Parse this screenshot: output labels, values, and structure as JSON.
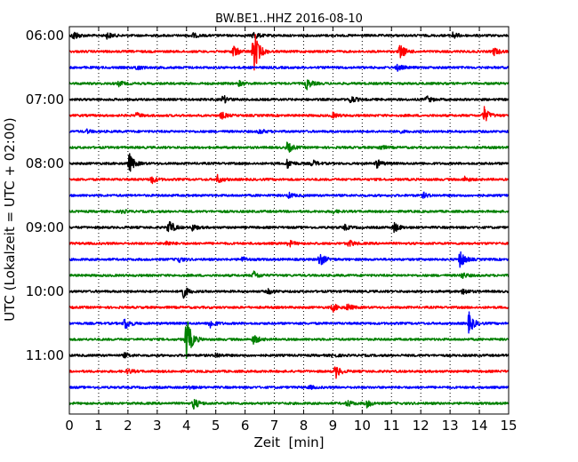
{
  "chart_data": {
    "type": "line",
    "title": "BW.BE1..HHZ 2016-08-10",
    "xlabel": "Zeit  [min]",
    "ylabel": "UTC (Lokalzeit = UTC + 02:00)",
    "xlim": [
      0,
      15
    ],
    "x_ticks": [
      "0",
      "1",
      "2",
      "3",
      "4",
      "5",
      "6",
      "7",
      "8",
      "9",
      "10",
      "11",
      "12",
      "13",
      "14",
      "15"
    ],
    "y_ticks": [
      {
        "label": "06:00",
        "trace": 0
      },
      {
        "label": "07:00",
        "trace": 4
      },
      {
        "label": "08:00",
        "trace": 8
      },
      {
        "label": "09:00",
        "trace": 12
      },
      {
        "label": "10:00",
        "trace": 16
      },
      {
        "label": "11:00",
        "trace": 20
      }
    ],
    "colors": [
      "#000000",
      "#ff0000",
      "#0000ff",
      "#008000"
    ],
    "grid": {
      "x": true,
      "y": false,
      "style": "dotted"
    },
    "traces": [
      {
        "events": [
          [
            0.15,
            0.6
          ],
          [
            1.3,
            0.4
          ],
          [
            4.2,
            0.3
          ],
          [
            6.3,
            0.5
          ],
          [
            13.1,
            0.4
          ]
        ]
      },
      {
        "events": [
          [
            5.6,
            0.8
          ],
          [
            6.3,
            3.0
          ],
          [
            11.3,
            1.0
          ],
          [
            14.5,
            0.5
          ]
        ]
      },
      {
        "events": [
          [
            2.3,
            0.3
          ],
          [
            11.2,
            0.4
          ]
        ]
      },
      {
        "events": [
          [
            1.7,
            0.3
          ],
          [
            5.8,
            0.3
          ],
          [
            8.1,
            0.7
          ]
        ]
      },
      {
        "events": [
          [
            5.25,
            0.5
          ],
          [
            9.6,
            0.5
          ],
          [
            12.2,
            0.4
          ]
        ]
      },
      {
        "events": [
          [
            2.3,
            0.3
          ],
          [
            5.2,
            0.4
          ],
          [
            9.0,
            0.3
          ],
          [
            14.15,
            1.1
          ]
        ]
      },
      {
        "events": [
          [
            0.6,
            0.2
          ],
          [
            6.5,
            0.3
          ],
          [
            11.2,
            0.2
          ]
        ]
      },
      {
        "events": [
          [
            7.45,
            0.7
          ],
          [
            10.6,
            0.3
          ]
        ]
      },
      {
        "events": [
          [
            2.05,
            1.2
          ],
          [
            7.45,
            0.6
          ],
          [
            8.3,
            0.4
          ],
          [
            10.5,
            0.5
          ]
        ]
      },
      {
        "events": [
          [
            2.8,
            0.5
          ],
          [
            5.05,
            0.5
          ],
          [
            13.5,
            0.3
          ]
        ]
      },
      {
        "events": [
          [
            7.5,
            0.3
          ],
          [
            12.1,
            0.3
          ]
        ]
      },
      {
        "events": [
          [
            1.8,
            0.2
          ],
          [
            9.0,
            0.2
          ]
        ]
      },
      {
        "events": [
          [
            3.4,
            1.0
          ],
          [
            4.2,
            0.4
          ],
          [
            9.4,
            0.3
          ],
          [
            11.1,
            0.6
          ]
        ]
      },
      {
        "events": [
          [
            3.3,
            0.3
          ],
          [
            7.5,
            0.4
          ],
          [
            9.55,
            0.4
          ]
        ]
      },
      {
        "events": [
          [
            3.7,
            0.4
          ],
          [
            5.9,
            0.3
          ],
          [
            8.55,
            0.9
          ],
          [
            13.35,
            1.1
          ]
        ]
      },
      {
        "events": [
          [
            6.3,
            0.5
          ],
          [
            13.4,
            0.4
          ]
        ]
      },
      {
        "events": [
          [
            3.85,
            1.0
          ],
          [
            6.8,
            0.3
          ],
          [
            13.45,
            0.4
          ]
        ]
      },
      {
        "events": [
          [
            9.0,
            0.5
          ],
          [
            9.5,
            0.4
          ]
        ]
      },
      {
        "events": [
          [
            1.9,
            0.8
          ],
          [
            4.8,
            0.6
          ],
          [
            13.65,
            1.3
          ]
        ]
      },
      {
        "events": [
          [
            4.0,
            3.0
          ],
          [
            6.3,
            0.6
          ]
        ]
      },
      {
        "events": [
          [
            1.9,
            0.3
          ],
          [
            5.0,
            0.3
          ],
          [
            9.0,
            0.2
          ]
        ]
      },
      {
        "events": [
          [
            2.0,
            0.3
          ],
          [
            9.1,
            0.8
          ]
        ]
      },
      {
        "events": [
          [
            4.1,
            0.2
          ],
          [
            8.2,
            0.2
          ]
        ]
      },
      {
        "events": [
          [
            4.25,
            0.7
          ],
          [
            9.5,
            0.4
          ],
          [
            10.15,
            0.5
          ]
        ]
      }
    ]
  }
}
